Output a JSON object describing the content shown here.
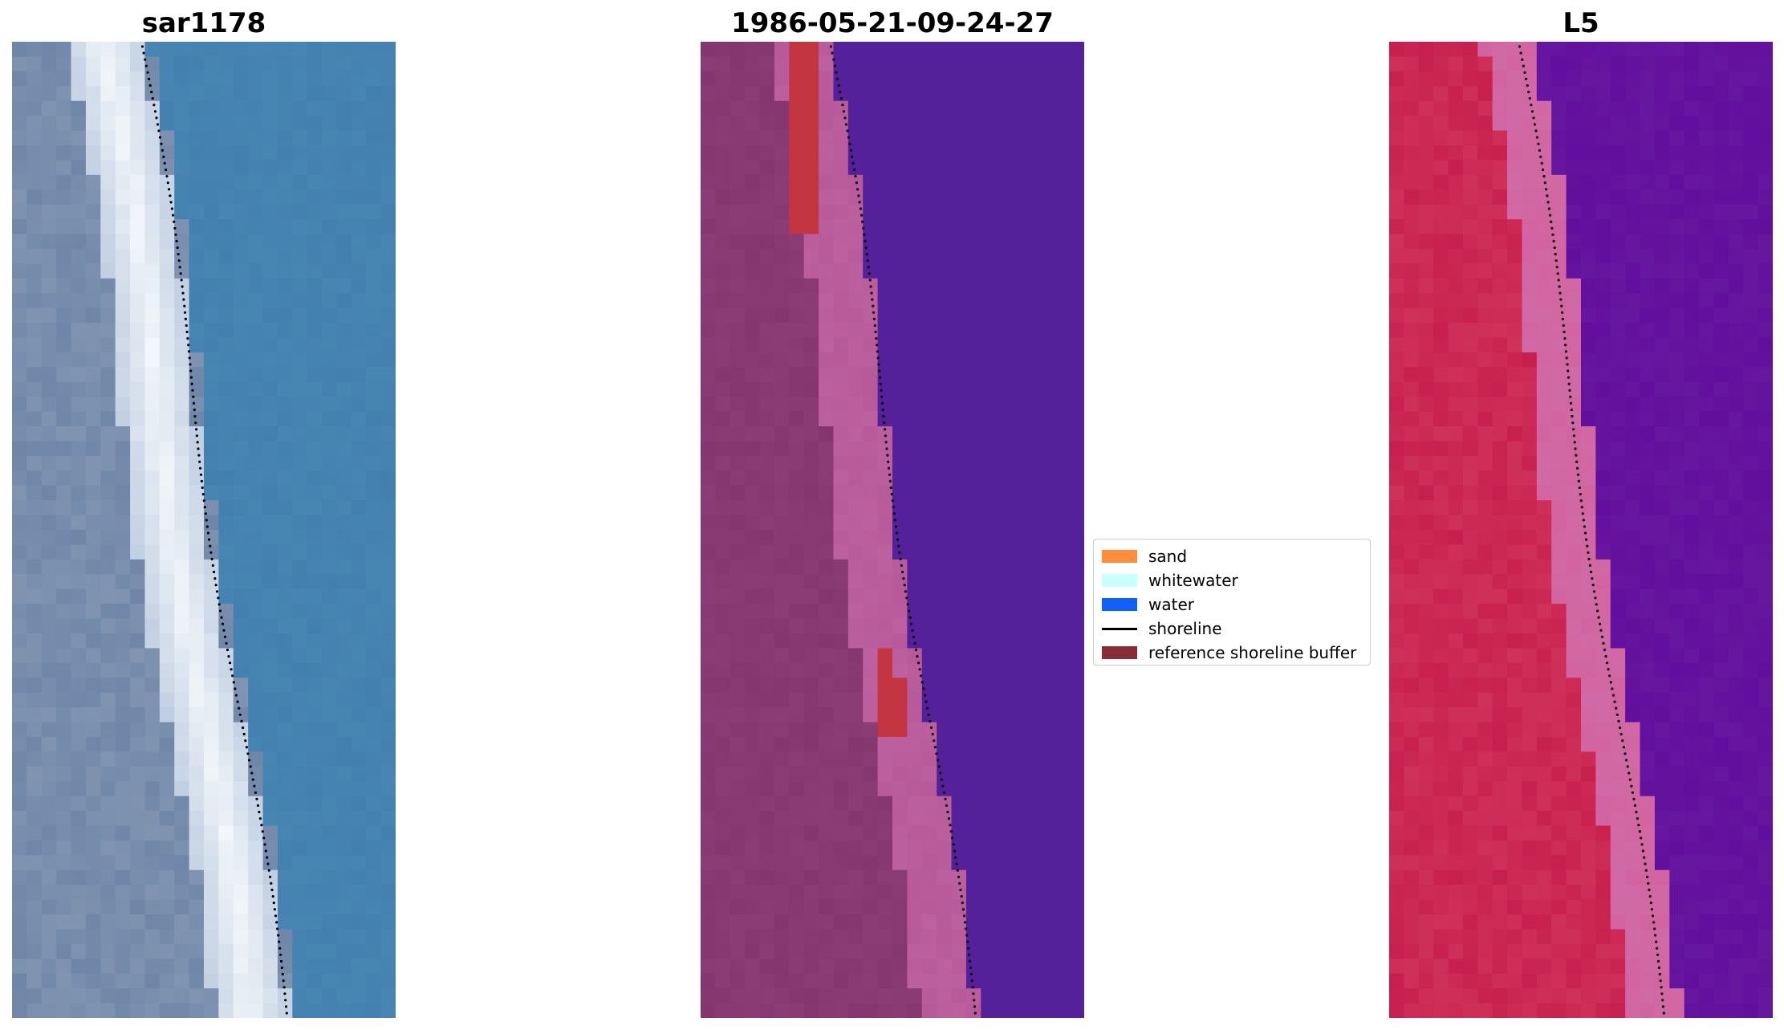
{
  "panels": [
    {
      "id": "rgb",
      "title": "sar1178"
    },
    {
      "id": "classified",
      "title": "1986-05-21-09-24-27"
    },
    {
      "id": "index",
      "title": "L5"
    }
  ],
  "legend": {
    "items": [
      {
        "label": "sand",
        "color": "#ff8c3a",
        "kind": "patch"
      },
      {
        "label": "whitewater",
        "color": "#c8ffff",
        "kind": "patch"
      },
      {
        "label": "water",
        "color": "#1060ff",
        "kind": "patch"
      },
      {
        "label": "shoreline",
        "color": "#000000",
        "kind": "line"
      },
      {
        "label": "reference shoreline buffer",
        "color": "#8b2c35",
        "kind": "patch"
      }
    ]
  },
  "colors": {
    "rgb_water": "#4380b0",
    "rgb_land": "#6f86a8",
    "rgb_surf": "#f4f8fb",
    "class_land": "#86366f",
    "class_buffer": "#b85a9a",
    "class_water": "#55219a",
    "class_sand": "#c43542",
    "index_land": "#c8204e",
    "index_buffer": "#d06aa6",
    "index_water": "#620e9e",
    "shoreline": "#000000"
  }
}
